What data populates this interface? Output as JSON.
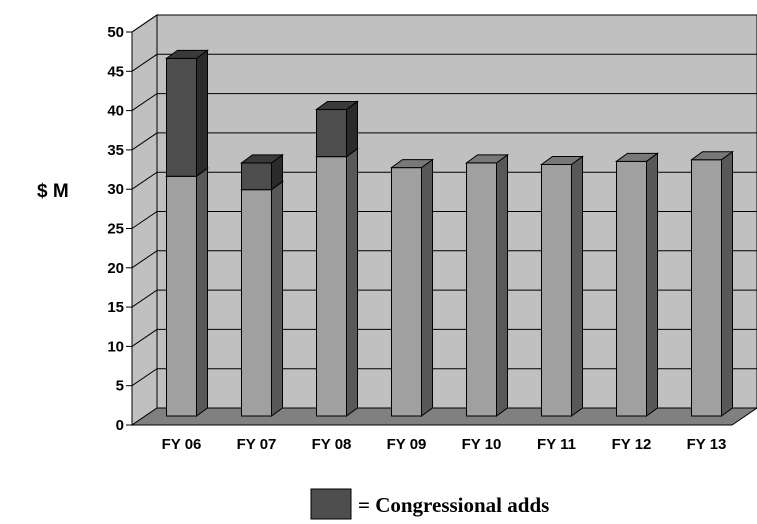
{
  "chart_data": {
    "type": "bar",
    "stacked": true,
    "three_d": true,
    "categories": [
      "FY 06",
      "FY 07",
      "FY 08",
      "FY 09",
      "FY 10",
      "FY 11",
      "FY 12",
      "FY 13"
    ],
    "series": [
      {
        "values": [
          30.5,
          28.8,
          33.0,
          31.6,
          32.2,
          32.0,
          32.4,
          32.6
        ],
        "color": "#a0a0a0"
      },
      {
        "name": "= Congressional adds",
        "values": [
          15.0,
          3.4,
          6.0,
          0,
          0,
          0,
          0,
          0
        ],
        "color": "#4d4d4d"
      }
    ],
    "ylabel": "$ M",
    "ylim": [
      0,
      50
    ],
    "yticks": [
      0,
      5,
      10,
      15,
      20,
      25,
      30,
      35,
      40,
      45,
      50
    ],
    "grid": true,
    "legend": "bottom-center",
    "wall_color": "#c0c0c0",
    "floor_color": "#808080"
  }
}
